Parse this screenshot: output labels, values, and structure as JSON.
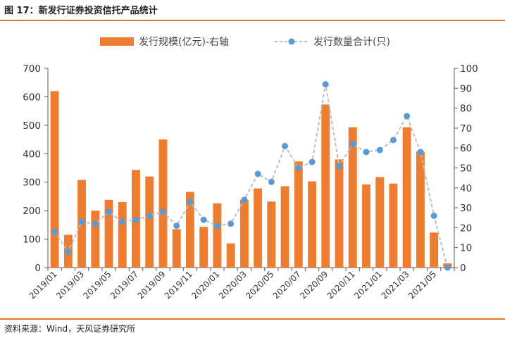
{
  "figure": {
    "title": "图 17：新发行证券投资信托产品统计",
    "source": "资料来源：Wind，天风证券研究所"
  },
  "chart_data": {
    "type": "bar",
    "x": [
      "2019/01",
      "2019/02",
      "2019/03",
      "2019/04",
      "2019/05",
      "2019/06",
      "2019/07",
      "2019/08",
      "2019/09",
      "2019/10",
      "2019/11",
      "2019/12",
      "2020/01",
      "2020/02",
      "2020/03",
      "2020/04",
      "2020/05",
      "2020/06",
      "2020/07",
      "2020/08",
      "2020/09",
      "2020/10",
      "2020/11",
      "2020/12",
      "2021/01",
      "2021/02",
      "2021/03",
      "2021/04",
      "2021/05",
      "2021/06"
    ],
    "x_tick_labels": [
      "2019/01",
      "2019/03",
      "2019/05",
      "2019/07",
      "2019/09",
      "2019/11",
      "2020/01",
      "2020/03",
      "2020/05",
      "2020/07",
      "2020/09",
      "2020/11",
      "2021/01",
      "2021/03",
      "2021/05"
    ],
    "series": [
      {
        "name": "发行规模(亿元)-右轴",
        "type": "bar",
        "axis": "left",
        "color": "#ed7d31",
        "values": [
          620,
          115,
          308,
          200,
          238,
          230,
          343,
          320,
          450,
          135,
          266,
          143,
          226,
          85,
          238,
          278,
          232,
          286,
          373,
          303,
          573,
          380,
          493,
          292,
          318,
          295,
          493,
          408,
          123,
          15
        ]
      },
      {
        "name": "发行数量合计(只)",
        "type": "line",
        "axis": "right",
        "color": "#5b9bd5",
        "line_color": "#bfbfbf",
        "line_style": "dashed",
        "values": [
          18,
          8,
          23,
          22,
          28,
          23,
          24,
          26,
          28,
          21,
          33,
          24,
          21,
          22,
          34,
          47,
          43,
          61,
          50,
          53,
          92,
          51,
          62,
          58,
          59,
          64,
          76,
          58,
          26,
          0
        ]
      }
    ],
    "y_left": {
      "min": 0,
      "max": 700,
      "ticks": [
        0,
        100,
        200,
        300,
        400,
        500,
        600,
        700
      ]
    },
    "y_right": {
      "min": 0,
      "max": 100,
      "ticks": [
        0,
        10,
        20,
        30,
        40,
        50,
        60,
        70,
        80,
        90,
        100
      ]
    },
    "legend_position": "top-center",
    "grid": false
  }
}
